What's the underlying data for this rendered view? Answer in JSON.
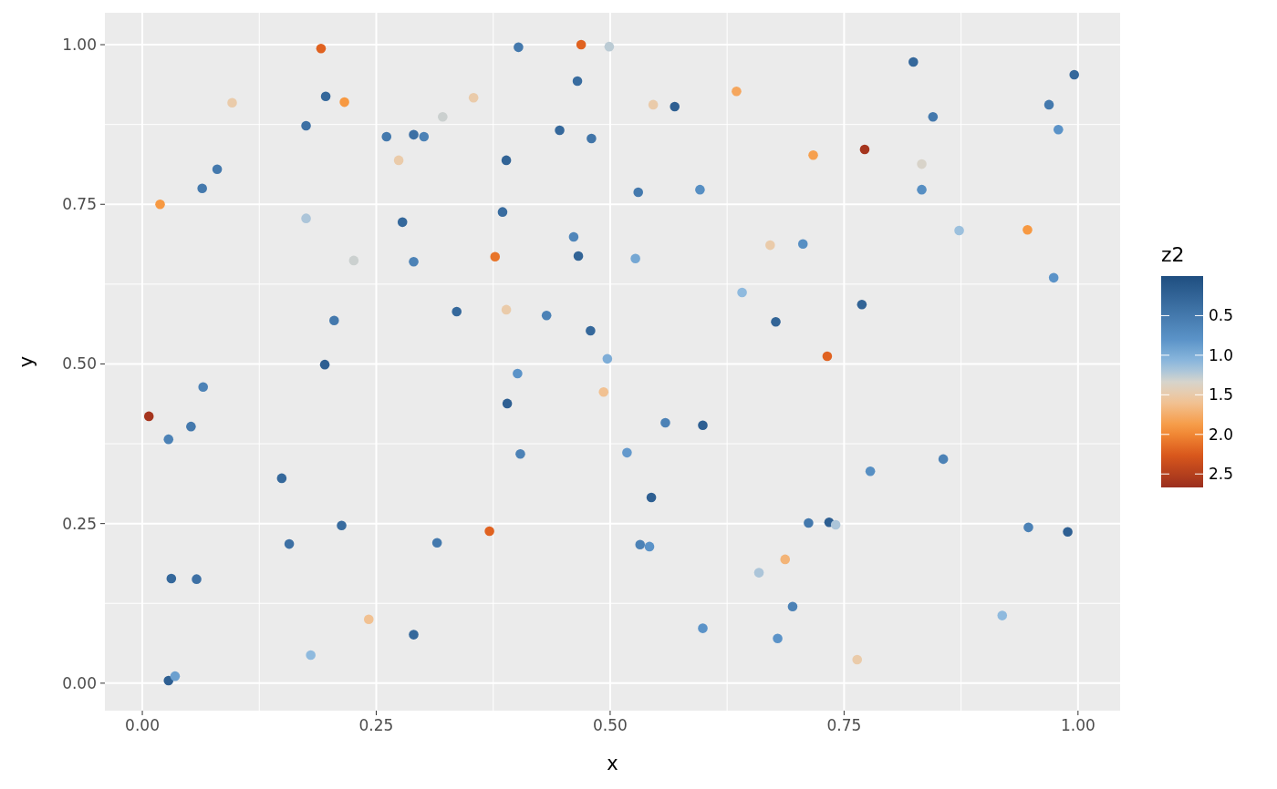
{
  "chart_data": {
    "type": "scatter",
    "xlabel": "x",
    "ylabel": "y",
    "clabel": "z2",
    "xlim": [
      -0.04,
      1.045
    ],
    "ylim": [
      -0.043,
      1.05
    ],
    "xticks": [
      {
        "value": 0,
        "label": "0.00"
      },
      {
        "value": 0.25,
        "label": "0.25"
      },
      {
        "value": 0.5,
        "label": "0.50"
      },
      {
        "value": 0.75,
        "label": "0.75"
      },
      {
        "value": 1,
        "label": "1.00"
      }
    ],
    "yticks": [
      {
        "value": 0,
        "label": "0.00"
      },
      {
        "value": 0.25,
        "label": "0.25"
      },
      {
        "value": 0.5,
        "label": "0.50"
      },
      {
        "value": 0.75,
        "label": "0.75"
      },
      {
        "value": 1,
        "label": "1.00"
      }
    ],
    "grid": true,
    "marker": "circle",
    "clim": [
      0,
      2.67
    ],
    "cticks": [
      0.5,
      {
        "value": 1,
        "label": "1.0"
      },
      1.5,
      {
        "value": 2,
        "label": "2.0"
      },
      2.5
    ],
    "x": [
      0.007,
      0.028,
      0.052,
      0.065,
      0.031,
      0.058,
      0.028,
      0.035,
      0.019,
      0.064,
      0.08,
      0.096,
      0.149,
      0.157,
      0.18,
      0.175,
      0.175,
      0.191,
      0.196,
      0.216,
      0.195,
      0.205,
      0.213,
      0.226,
      0.242,
      0.261,
      0.274,
      0.278,
      0.29,
      0.29,
      0.29,
      0.301,
      0.321,
      0.315,
      0.336,
      0.354,
      0.371,
      0.377,
      0.385,
      0.389,
      0.39,
      0.389,
      0.402,
      0.401,
      0.404,
      0.432,
      0.446,
      0.461,
      0.465,
      0.466,
      0.469,
      0.48,
      0.479,
      0.493,
      0.499,
      0.497,
      0.518,
      0.527,
      0.53,
      0.532,
      0.542,
      0.544,
      0.546,
      0.569,
      0.559,
      0.596,
      0.599,
      0.599,
      0.635,
      0.641,
      0.659,
      0.671,
      0.677,
      0.679,
      0.687,
      0.695,
      0.706,
      0.712,
      0.717,
      0.732,
      0.734,
      0.741,
      0.764,
      0.769,
      0.772,
      0.778,
      0.824,
      0.833,
      0.833,
      0.845,
      0.856,
      0.873,
      0.919,
      0.946,
      0.947,
      0.969,
      0.974,
      0.979,
      0.989,
      0.996
    ],
    "values": [
      0.418,
      0.382,
      0.402,
      0.464,
      0.164,
      0.163,
      0.004,
      0.011,
      0.75,
      0.775,
      0.805,
      0.909,
      0.321,
      0.218,
      0.044,
      0.873,
      0.728,
      0.994,
      0.919,
      0.91,
      0.499,
      0.568,
      0.247,
      0.662,
      0.1,
      0.856,
      0.819,
      0.722,
      0.859,
      0.66,
      0.076,
      0.856,
      0.887,
      0.22,
      0.582,
      0.917,
      0.238,
      0.668,
      0.738,
      0.819,
      0.438,
      0.585,
      0.996,
      0.485,
      0.359,
      0.576,
      0.866,
      0.699,
      0.943,
      0.669,
      1.0,
      0.853,
      0.552,
      0.456,
      0.997,
      0.508,
      0.361,
      0.665,
      0.769,
      0.217,
      0.214,
      0.291,
      0.906,
      0.903,
      0.408,
      0.773,
      0.404,
      0.086,
      0.927,
      0.612,
      0.173,
      0.686,
      0.566,
      0.07,
      0.194,
      0.12,
      0.688,
      0.251,
      0.827,
      0.512,
      0.252,
      0.248,
      0.037,
      0.593,
      0.836,
      0.332,
      0.973,
      0.813,
      0.773,
      0.887,
      0.351,
      0.709,
      0.106,
      0.71,
      0.244,
      0.906,
      0.635,
      0.867,
      0.237,
      0.953
    ],
    "cvalues": [
      2.6,
      0.6,
      0.5,
      0.6,
      0.3,
      0.4,
      0.2,
      0.9,
      1.9,
      0.5,
      0.5,
      1.5,
      0.3,
      0.4,
      1.1,
      0.4,
      1.2,
      2.2,
      0.3,
      1.9,
      0.2,
      0.5,
      0.35,
      1.3,
      1.6,
      0.5,
      1.5,
      0.3,
      0.4,
      0.6,
      0.3,
      0.6,
      1.3,
      0.5,
      0.3,
      1.5,
      2.2,
      2.1,
      0.35,
      0.25,
      0.2,
      1.5,
      0.5,
      0.8,
      0.6,
      0.6,
      0.3,
      0.65,
      0.35,
      0.25,
      2.2,
      0.45,
      0.3,
      1.6,
      1.25,
      1.0,
      0.85,
      0.95,
      0.5,
      0.6,
      0.8,
      0.2,
      1.5,
      0.2,
      0.6,
      0.75,
      0.2,
      0.8,
      1.8,
      1.1,
      1.2,
      1.5,
      0.25,
      0.8,
      1.7,
      0.6,
      0.75,
      0.5,
      1.85,
      2.2,
      0.2,
      1.2,
      1.5,
      0.25,
      2.6,
      0.75,
      0.3,
      1.35,
      0.75,
      0.5,
      0.6,
      1.15,
      1.1,
      1.9,
      0.6,
      0.5,
      0.8,
      0.8,
      0.2,
      0.3
    ]
  }
}
